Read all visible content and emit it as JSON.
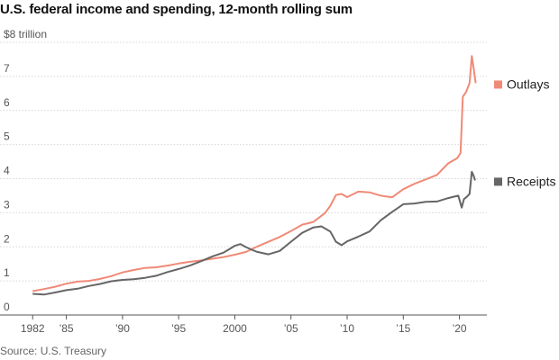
{
  "title": "U.S. federal income and spending, 12-month rolling sum",
  "source": "Source: U.S. Treasury",
  "chart_data": {
    "type": "line",
    "title": "U.S. federal income and spending, 12-month rolling sum",
    "xlabel": "",
    "ylabel": "",
    "xlim": [
      1981.5,
      2021.8
    ],
    "ylim": [
      0,
      8
    ],
    "grid": true,
    "legend": "right",
    "y_ticks": [
      {
        "value": 8,
        "label": "$8 trillion"
      },
      {
        "value": 7,
        "label": "7"
      },
      {
        "value": 6,
        "label": "6"
      },
      {
        "value": 5,
        "label": "5"
      },
      {
        "value": 4,
        "label": "4"
      },
      {
        "value": 3,
        "label": "3"
      },
      {
        "value": 2,
        "label": "2"
      },
      {
        "value": 1,
        "label": "1"
      },
      {
        "value": 0,
        "label": "0"
      }
    ],
    "x_ticks": [
      {
        "value": 1982,
        "label": "1982"
      },
      {
        "value": 1985,
        "label": "’85"
      },
      {
        "value": 1990,
        "label": "’90"
      },
      {
        "value": 1995,
        "label": "’95"
      },
      {
        "value": 2000,
        "label": "2000"
      },
      {
        "value": 2005,
        "label": "’05"
      },
      {
        "value": 2010,
        "label": "’10"
      },
      {
        "value": 2015,
        "label": "’15"
      },
      {
        "value": 2020,
        "label": "’20"
      }
    ],
    "series": [
      {
        "name": "Outlays",
        "color": "#f08a78",
        "x": [
          1982,
          1983,
          1984,
          1985,
          1986,
          1987,
          1988,
          1989,
          1990,
          1991,
          1992,
          1993,
          1994,
          1995,
          1996,
          1997,
          1998,
          1999,
          2000,
          2001,
          2002,
          2003,
          2004,
          2005,
          2006,
          2007,
          2008,
          2008.5,
          2009,
          2009.5,
          2010,
          2011,
          2012,
          2013,
          2014,
          2015,
          2016,
          2017,
          2018,
          2019,
          2019.8,
          2020.1,
          2020.3,
          2020.6,
          2020.9,
          2021.1,
          2021.3,
          2021.45
        ],
        "y": [
          0.7,
          0.76,
          0.83,
          0.92,
          0.98,
          1.0,
          1.06,
          1.14,
          1.25,
          1.32,
          1.38,
          1.4,
          1.45,
          1.51,
          1.56,
          1.6,
          1.65,
          1.7,
          1.77,
          1.85,
          2.01,
          2.15,
          2.29,
          2.46,
          2.65,
          2.73,
          2.98,
          3.2,
          3.52,
          3.55,
          3.46,
          3.62,
          3.6,
          3.5,
          3.45,
          3.69,
          3.85,
          3.98,
          4.11,
          4.45,
          4.6,
          4.75,
          6.4,
          6.55,
          6.8,
          7.6,
          7.15,
          6.8
        ]
      },
      {
        "name": "Receipts",
        "color": "#666666",
        "x": [
          1982,
          1983,
          1984,
          1985,
          1986,
          1987,
          1988,
          1989,
          1990,
          1991,
          1992,
          1993,
          1994,
          1995,
          1996,
          1997,
          1998,
          1999,
          2000,
          2000.5,
          2001,
          2001.6,
          2002,
          2003,
          2004,
          2005,
          2006,
          2007,
          2007.7,
          2008.5,
          2009,
          2009.5,
          2010,
          2011,
          2012,
          2013,
          2014,
          2015,
          2016,
          2017,
          2018,
          2019,
          2019.9,
          2020.2,
          2020.4,
          2020.6,
          2020.9,
          2021.1,
          2021.25,
          2021.4
        ],
        "y": [
          0.62,
          0.6,
          0.66,
          0.73,
          0.77,
          0.85,
          0.91,
          0.99,
          1.03,
          1.05,
          1.09,
          1.15,
          1.26,
          1.35,
          1.45,
          1.58,
          1.72,
          1.83,
          2.03,
          2.08,
          1.99,
          1.9,
          1.85,
          1.78,
          1.88,
          2.15,
          2.41,
          2.57,
          2.6,
          2.45,
          2.15,
          2.05,
          2.16,
          2.3,
          2.45,
          2.78,
          3.02,
          3.25,
          3.27,
          3.32,
          3.33,
          3.43,
          3.5,
          3.15,
          3.4,
          3.45,
          3.55,
          4.2,
          4.1,
          3.95
        ]
      }
    ]
  }
}
